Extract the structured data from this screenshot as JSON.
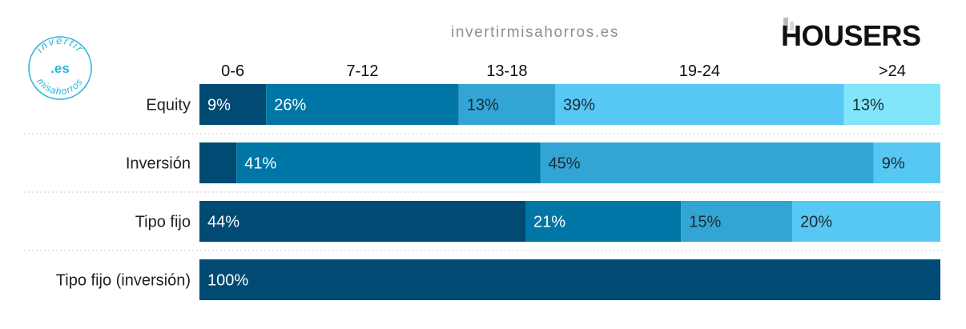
{
  "watermark": "invertirmisahorros.es",
  "logo_left": {
    "top_text": "invertir",
    "center_text": ".es",
    "bottom_text": "misahorros",
    "color": "#29b6d8"
  },
  "logo_right": {
    "text": "HOUSERS",
    "color": "#111111"
  },
  "colors": [
    "#004a73",
    "#0076a6",
    "#33a5d4",
    "#57c7f3",
    "#82e6fb"
  ],
  "chart_data": {
    "type": "bar",
    "orientation": "horizontal",
    "stacked": true,
    "categories": [
      "Equity",
      "Inversión",
      "Tipo fijo",
      "Tipo fijo (inversión)"
    ],
    "series": [
      {
        "name": "0-6",
        "values": [
          9,
          5,
          44,
          100
        ]
      },
      {
        "name": "7-12",
        "values": [
          26,
          41,
          21,
          0
        ]
      },
      {
        "name": "13-18",
        "values": [
          13,
          45,
          15,
          0
        ]
      },
      {
        "name": "19-24",
        "values": [
          39,
          9,
          20,
          0
        ]
      },
      {
        "name": ">24",
        "values": [
          13,
          0,
          0,
          0
        ]
      }
    ],
    "data_labels": [
      [
        "9%",
        "26%",
        "13%",
        "39%",
        "13%"
      ],
      [
        "",
        "41%",
        "45%",
        "9%",
        ""
      ],
      [
        "44%",
        "21%",
        "15%",
        "20%",
        ""
      ],
      [
        "100%",
        "",
        "",
        "",
        ""
      ]
    ],
    "legend_position": "top",
    "grid": false,
    "xlim": [
      0,
      100
    ]
  }
}
